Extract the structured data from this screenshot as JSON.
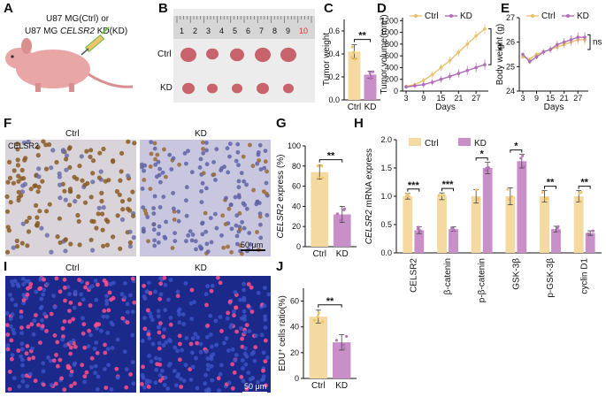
{
  "colors": {
    "ctrl": "#f4d9a0",
    "ctrl_line": "#e9c06b",
    "kd": "#c88fc8",
    "kd_line": "#b26bb7",
    "dot_ctrl": "#f2c46a",
    "dot_kd": "#b873bd"
  },
  "panel_labels": {
    "A": "A",
    "B": "B",
    "C": "C",
    "D": "D",
    "E": "E",
    "F": "F",
    "G": "G",
    "H": "H",
    "I": "I",
    "J": "J"
  },
  "panel_a": {
    "line1": "U87 MG(Ctrl) or",
    "line2_prefix": "U87 MG ",
    "line2_gene": "CELSR2",
    "line2_suffix": " KD(KD)"
  },
  "panel_b": {
    "ruler_numbers": [
      "1",
      "2",
      "3",
      "4",
      "5",
      "6",
      "7",
      "8",
      "9",
      "10"
    ],
    "row_ctrl": "Ctrl",
    "row_kd": "KD"
  },
  "panel_f": {
    "marker": "CELSR2",
    "ctrl_title": "Ctrl",
    "kd_title": "KD",
    "scale": "50 μm"
  },
  "panel_i": {
    "ctrl_title": "Ctrl",
    "kd_title": "KD",
    "scale": "50 μm"
  },
  "chart_data": [
    {
      "id": "C",
      "type": "bar",
      "categories": [
        "Ctrl",
        "KD"
      ],
      "values": [
        0.42,
        0.22
      ],
      "errors": [
        0.06,
        0.03
      ],
      "ylabel": "Tumor weight",
      "ylim": [
        0,
        0.7
      ],
      "yticks": [
        "0.0",
        "0.2",
        "0.4",
        "0.6"
      ],
      "significance": "**"
    },
    {
      "id": "D",
      "type": "line",
      "x": [
        3,
        6,
        9,
        12,
        15,
        18,
        21,
        24,
        27,
        30
      ],
      "xticks": [
        "3",
        "9",
        "15",
        "21",
        "27"
      ],
      "xlabel": "Days",
      "ylabel": "Tumor volume(mm³)",
      "ylim": [
        0,
        1250
      ],
      "yticks": [
        "0",
        "200",
        "400",
        "600",
        "800",
        "1000",
        "1200"
      ],
      "legend": [
        "Ctrl",
        "KD"
      ],
      "significance": "**",
      "series": [
        {
          "name": "Ctrl",
          "values": [
            80,
            110,
            180,
            280,
            400,
            520,
            660,
            800,
            940,
            1060
          ]
        },
        {
          "name": "KD",
          "values": [
            70,
            90,
            110,
            150,
            200,
            250,
            300,
            350,
            400,
            450
          ]
        }
      ]
    },
    {
      "id": "E",
      "type": "line",
      "x": [
        3,
        6,
        9,
        12,
        15,
        18,
        21,
        24,
        27,
        30
      ],
      "xticks": [
        "3",
        "9",
        "15",
        "21",
        "27"
      ],
      "xlabel": "Days",
      "ylabel": "Body weight (g)",
      "ylim": [
        24,
        27
      ],
      "yticks": [
        "24",
        "25",
        "26",
        "27"
      ],
      "legend": [
        "Ctrl",
        "KD"
      ],
      "significance": "ns",
      "series": [
        {
          "name": "Ctrl",
          "values": [
            25.4,
            25.3,
            25.5,
            25.6,
            25.7,
            25.8,
            25.9,
            26.0,
            26.1,
            26.1
          ]
        },
        {
          "name": "KD",
          "values": [
            25.5,
            25.2,
            25.4,
            25.6,
            25.7,
            25.9,
            26.0,
            26.1,
            26.2,
            26.2
          ]
        }
      ]
    },
    {
      "id": "G",
      "type": "bar",
      "categories": [
        "Ctrl",
        "KD"
      ],
      "values": [
        74,
        32
      ],
      "errors": [
        7,
        8
      ],
      "ylabel_gene": "CELSR2",
      "ylabel_rest": " express (%)",
      "ylim": [
        0,
        100
      ],
      "yticks": [
        "0",
        "20",
        "40",
        "60",
        "80",
        "100"
      ],
      "significance": "**"
    },
    {
      "id": "H",
      "type": "bar",
      "categories": [
        "CELSR2",
        "β-catenin",
        "p-β-catenin",
        "GSK-3β",
        "p-GSK-3β",
        "cyclin D1"
      ],
      "ylabel_gene": "CELSR2",
      "ylabel_rest": " mRNA express",
      "ylim": [
        0,
        2.0
      ],
      "yticks": [
        "0.0",
        "0.5",
        "1.0",
        "1.5",
        "2.0"
      ],
      "legend": [
        "Ctrl",
        "KD"
      ],
      "series": [
        {
          "name": "Ctrl",
          "values": [
            1.0,
            1.0,
            1.0,
            1.0,
            1.0,
            1.0
          ],
          "errors": [
            0.05,
            0.06,
            0.12,
            0.15,
            0.1,
            0.1
          ]
        },
        {
          "name": "KD",
          "values": [
            0.4,
            0.42,
            1.5,
            1.62,
            0.42,
            0.35
          ],
          "errors": [
            0.06,
            0.04,
            0.1,
            0.12,
            0.05,
            0.04
          ]
        }
      ],
      "significance": [
        "***",
        "***",
        "*",
        "*",
        "**",
        "**"
      ]
    },
    {
      "id": "J",
      "type": "bar",
      "categories": [
        "Ctrl",
        "KD"
      ],
      "values": [
        48,
        28
      ],
      "errors": [
        5,
        6
      ],
      "ylabel_sup": "+",
      "ylabel_pre": "EDU",
      "ylabel_rest": " cells ratio(%)",
      "ylim": [
        0,
        70
      ],
      "yticks": [
        "0",
        "20",
        "40",
        "60"
      ],
      "significance": "**"
    }
  ]
}
